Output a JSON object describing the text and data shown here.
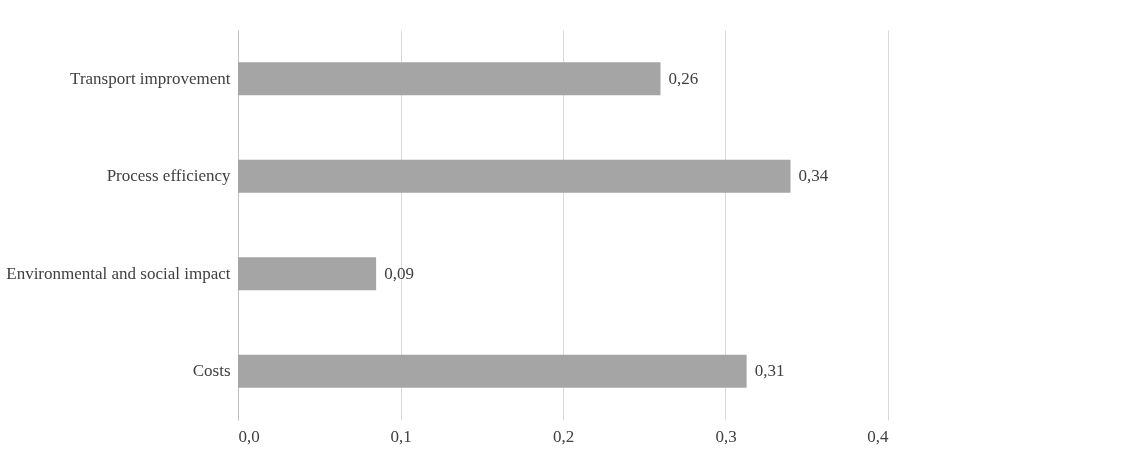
{
  "chart_data": {
    "type": "bar",
    "orientation": "horizontal",
    "categories": [
      "Transport improvement",
      "Process efficiency",
      "Environmental and social impact",
      "Costs"
    ],
    "values": [
      0.26,
      0.34,
      0.085,
      0.313
    ],
    "value_labels": [
      "0,26",
      "0,34",
      "0,09",
      "0,31"
    ],
    "color": "#a5a5a5",
    "xlim": [
      0,
      0.4
    ],
    "xticks": [
      {
        "value": 0,
        "label": "0,0"
      },
      {
        "value": 0.1,
        "label": "0,1"
      },
      {
        "value": 0.2,
        "label": "0,2"
      },
      {
        "value": 0.3,
        "label": "0,3"
      },
      {
        "value": 0.4,
        "label": "0,4"
      }
    ],
    "grid": "x"
  }
}
